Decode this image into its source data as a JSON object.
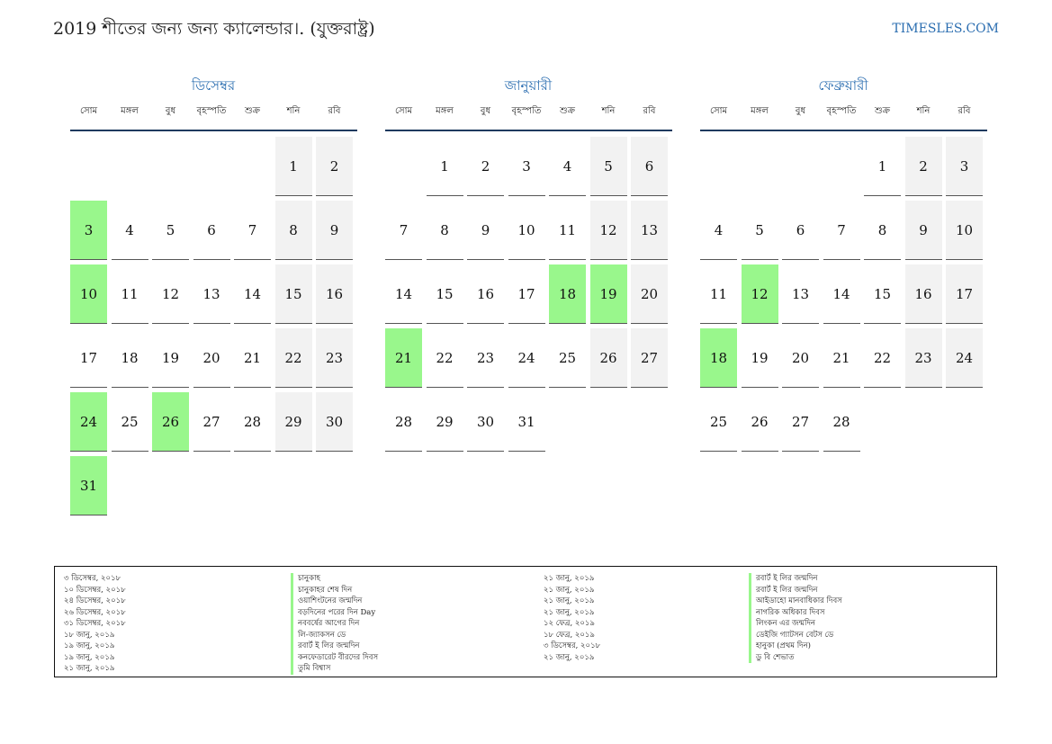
{
  "header": {
    "title": "2019 শীতের জন্য জন্য ক্যালেন্ডার।. (যুক্তরাষ্ট্র)",
    "site": "TIMESLES.COM"
  },
  "weekdays": [
    "সোম",
    "মঙ্গল",
    "বুধ",
    "বৃহস্পতি",
    "শুক্র",
    "শনি",
    "রবি"
  ],
  "colors": {
    "holiday": "#99f78c",
    "weekend": "#f2f2f2",
    "accent": "#2a6db0"
  },
  "months": [
    {
      "name": "ডিসেম্বর",
      "offset": 5,
      "days": 31,
      "holidays": [
        3,
        10,
        24,
        26,
        31
      ]
    },
    {
      "name": "জানুয়ারী",
      "offset": 1,
      "days": 31,
      "holidays": [
        18,
        19,
        21
      ]
    },
    {
      "name": "ফেব্রুয়ারী",
      "offset": 4,
      "days": 28,
      "holidays": [
        12,
        18
      ]
    }
  ],
  "legend": {
    "left": [
      {
        "date": "৩ ডিসেম্বর, ২০১৮",
        "name": "চানুকাহ"
      },
      {
        "date": "১০ ডিসেম্বর, ২০১৮",
        "name": "চানুকাহর শেষ দিন"
      },
      {
        "date": "২৪ ডিসেম্বর, ২০১৮",
        "name": "ওয়াশিংটনের জন্মদিন"
      },
      {
        "date": "২৬ ডিসেম্বর, ২০১৮",
        "name": "বড়দিনের পরের দিন Day"
      },
      {
        "date": "৩১ ডিসেম্বর, ২০১৮",
        "name": "নববর্ষের আগের দিন"
      },
      {
        "date": "১৮ জানু, ২০১৯",
        "name": "লি-জ্যাকসন ডে"
      },
      {
        "date": "১৯ জানু, ২০১৯",
        "name": "রবার্ট ই লির জন্মদিন"
      },
      {
        "date": "১৯ জানু, ২০১৯",
        "name": "কনফেডারেট বীরদের দিবস"
      },
      {
        "date": "২১ জানু, ২০১৯",
        "name": "তুমি বিশ্বাস"
      }
    ],
    "right": [
      {
        "date": "২১ জানু, ২০১৯",
        "name": "রবার্ট ই লির জন্মদিন"
      },
      {
        "date": "২১ জানু, ২০১৯",
        "name": "রবার্ট ই লির জন্মদিন"
      },
      {
        "date": "২১ জানু, ২০১৯",
        "name": "আইডাহো মানবাধিকার দিবস"
      },
      {
        "date": "২১ জানু, ২০১৯",
        "name": "নাগরিক অধিকার দিবস"
      },
      {
        "date": "১২ ফেব্র, ২০১৯",
        "name": "লিংকন এর জন্মদিন"
      },
      {
        "date": "১৮ ফেব্র, ২০১৯",
        "name": "ডেইজি গ্যাটসন বেটস ডে"
      },
      {
        "date": "৩ ডিসেম্বর, ২০১৮",
        "name": "হানুকা (প্রথম দিন)"
      },
      {
        "date": "২১ জানু, ২০১৯",
        "name": "ডু বি শেভাত"
      }
    ]
  }
}
